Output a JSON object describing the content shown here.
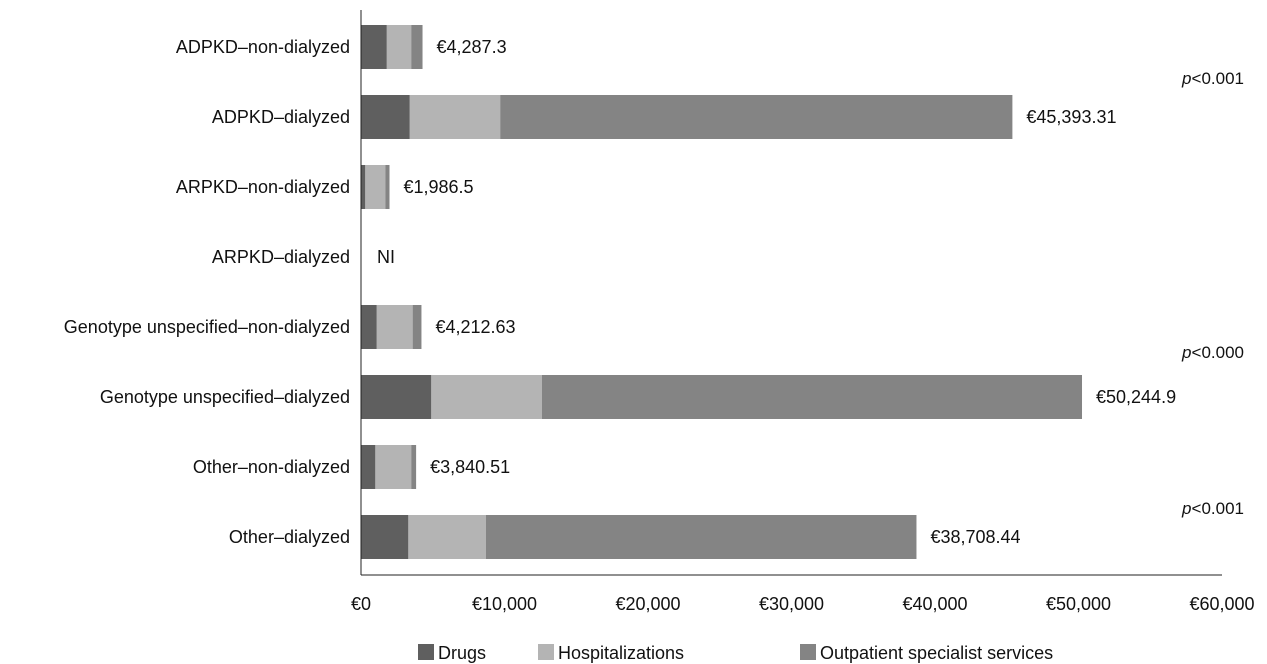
{
  "chart_data": {
    "type": "bar",
    "orientation": "horizontal",
    "stacked": true,
    "categories": [
      "ADPKD–non-dialyzed",
      "ADPKD–dialyzed",
      "ARPKD–non-dialyzed",
      "ARPKD–dialyzed",
      "Genotype unspecified–non-dialyzed",
      "Genotype unspecified–dialyzed",
      "Other–non-dialyzed",
      "Other–dialyzed"
    ],
    "series": [
      {
        "name": "Drugs",
        "color": "#5f5f5f",
        "values": [
          1800,
          3400,
          300,
          null,
          1100,
          4900,
          1000,
          3300
        ]
      },
      {
        "name": "Hospitalizations",
        "color": "#b4b4b4",
        "values": [
          1700,
          6300,
          1400,
          null,
          2500,
          7700,
          2500,
          5400
        ]
      },
      {
        "name": "Outpatient specialist services",
        "color": "#848484",
        "values": [
          787.3,
          35693.31,
          286.5,
          null,
          612.63,
          37644.9,
          340.51,
          30008.44
        ]
      }
    ],
    "data_labels": [
      "€4,287.3",
      "€45,393.31",
      "€1,986.5",
      "NI",
      "€4,212.63",
      "€50,244.9",
      "€3,840.51",
      "€38,708.44"
    ],
    "totals": [
      4287.3,
      45393.31,
      1986.5,
      null,
      4212.63,
      50244.9,
      3840.51,
      38708.44
    ],
    "x_ticks": [
      "€0",
      "€10,000",
      "€20,000",
      "€30,000",
      "€40,000",
      "€50,000",
      "€60,000"
    ],
    "xlim": [
      0,
      60000
    ],
    "annotations": [
      {
        "prefix": "p",
        "text": "<0.001",
        "group": [
          "ADPKD–non-dialyzed",
          "ADPKD–dialyzed"
        ]
      },
      {
        "prefix": "p",
        "text": "<0.000",
        "group": [
          "Genotype unspecified–non-dialyzed",
          "Genotype unspecified–dialyzed"
        ]
      },
      {
        "prefix": "p",
        "text": "<0.001",
        "group": [
          "Other–non-dialyzed",
          "Other–dialyzed"
        ]
      }
    ],
    "title": "",
    "xlabel": "",
    "ylabel": "",
    "grid": false,
    "legend_position": "bottom"
  }
}
